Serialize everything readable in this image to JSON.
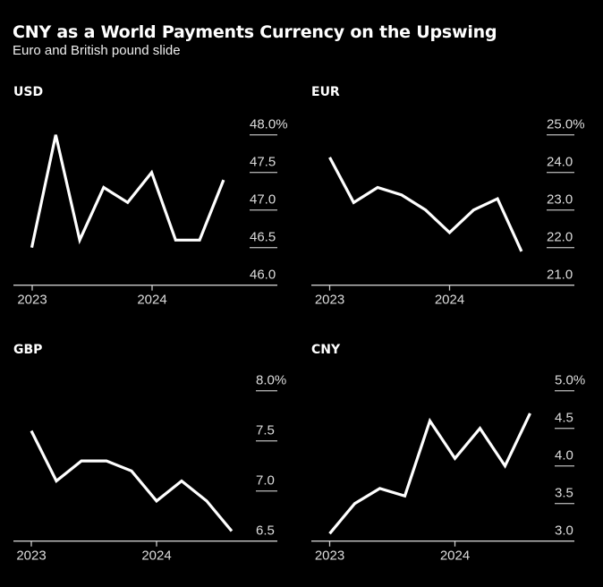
{
  "header": {
    "title": "CNY as a World Payments Currency on the Upswing",
    "subtitle": "Euro and British pound slide"
  },
  "chart_data": [
    {
      "type": "line",
      "title": "USD",
      "x_tick_labels": [
        "2023",
        "2024"
      ],
      "y_tick_labels": [
        "48.0%",
        "47.5",
        "47.0",
        "46.5",
        "46.0"
      ],
      "ylim": [
        46.0,
        48.0
      ],
      "y_ticks": [
        48.0,
        47.5,
        47.0,
        46.5,
        46.0
      ],
      "values": [
        46.5,
        48.0,
        46.6,
        47.3,
        47.1,
        47.5,
        46.6,
        46.6,
        47.4
      ],
      "x_index_2023": 0,
      "x_index_2024": 5,
      "grid": true,
      "yaxis_side": "right"
    },
    {
      "type": "line",
      "title": "EUR",
      "x_tick_labels": [
        "2023",
        "2024"
      ],
      "y_tick_labels": [
        "25.0%",
        "24.0",
        "23.0",
        "22.0",
        "21.0"
      ],
      "ylim": [
        21.0,
        25.0
      ],
      "y_ticks": [
        25.0,
        24.0,
        23.0,
        22.0,
        21.0
      ],
      "values": [
        24.4,
        23.2,
        23.6,
        23.4,
        23.0,
        22.4,
        23.0,
        23.3,
        21.9
      ],
      "x_index_2023": 0,
      "x_index_2024": 5,
      "grid": true,
      "yaxis_side": "right"
    },
    {
      "type": "line",
      "title": "GBP",
      "x_tick_labels": [
        "2023",
        "2024"
      ],
      "y_tick_labels": [
        "8.0%",
        "7.5",
        "7.0",
        "6.5"
      ],
      "ylim": [
        6.5,
        8.0
      ],
      "y_ticks": [
        8.0,
        7.5,
        7.0,
        6.5
      ],
      "values": [
        7.6,
        7.1,
        7.3,
        7.3,
        7.2,
        6.9,
        7.1,
        6.9,
        6.6
      ],
      "x_index_2023": 0,
      "x_index_2024": 5,
      "grid": true,
      "yaxis_side": "right"
    },
    {
      "type": "line",
      "title": "CNY",
      "x_tick_labels": [
        "2023",
        "2024"
      ],
      "y_tick_labels": [
        "5.0%",
        "4.5",
        "4.0",
        "3.5",
        "3.0"
      ],
      "ylim": [
        3.0,
        5.0
      ],
      "y_ticks": [
        5.0,
        4.5,
        4.0,
        3.5,
        3.0
      ],
      "values": [
        3.1,
        3.5,
        3.7,
        3.6,
        4.6,
        4.1,
        4.5,
        4.0,
        4.7
      ],
      "x_index_2023": 0,
      "x_index_2024": 5,
      "grid": true,
      "yaxis_side": "right"
    }
  ]
}
